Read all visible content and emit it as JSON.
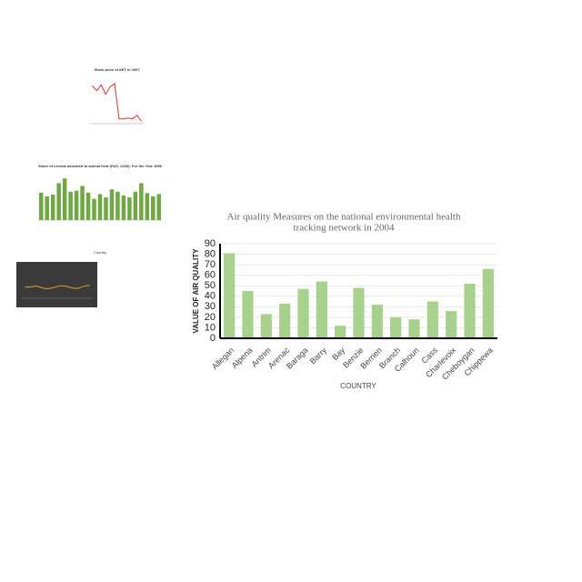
{
  "chart_data": [
    {
      "type": "bar",
      "title": "Air quality Measures on the national environmental health tracking network in 2004",
      "x_label": "COUNTRY",
      "y_label": "VALUE OF AIR QUALITY",
      "categories": [
        "Allegan",
        "Alpena",
        "Antrim",
        "Arenac",
        "Baraga",
        "Barry",
        "Bay",
        "Benzie",
        "Berrien",
        "Branch",
        "Calhoun",
        "Cass",
        "Charlevoix",
        "Cheboygan",
        "Chippewa"
      ],
      "values": [
        81,
        45,
        23,
        33,
        47,
        54,
        12,
        48,
        32,
        20,
        18,
        35,
        26,
        52,
        66
      ],
      "color": "#a9d18e",
      "ylim": [
        0,
        90
      ],
      "yticks": [
        0,
        10,
        20,
        30,
        40,
        50,
        60,
        70,
        80,
        90
      ],
      "grid": true
    },
    {
      "type": "line",
      "title": "Stock price of AET in 2007",
      "values": [
        80,
        70,
        82,
        62,
        78,
        85,
        10,
        10,
        12,
        10,
        18,
        5
      ],
      "color": "#e03030",
      "ylim": [
        0,
        100
      ]
    },
    {
      "type": "bar",
      "title": "Share of cereals allocated to animal feed (FAO, 2020): For the Year 1996",
      "x_label": "Country",
      "categories": [
        null,
        null,
        null,
        null,
        null,
        null,
        null,
        null,
        null,
        null,
        null,
        null,
        null,
        null,
        null,
        null,
        null,
        null,
        null,
        null,
        null
      ],
      "values": [
        58,
        50,
        54,
        78,
        88,
        60,
        62,
        72,
        58,
        45,
        55,
        48,
        65,
        60,
        52,
        48,
        60,
        78,
        57,
        50,
        55
      ],
      "color": "#70a845",
      "ylim": [
        0,
        100
      ]
    },
    {
      "type": "dark-line",
      "values": [
        40,
        42,
        45,
        38,
        35,
        40,
        46,
        44,
        38,
        36,
        44,
        48
      ],
      "color": "#e0a020",
      "ylim": [
        0,
        100
      ]
    }
  ]
}
